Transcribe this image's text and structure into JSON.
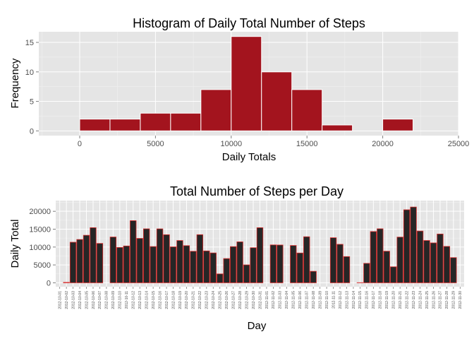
{
  "chart_data": [
    {
      "type": "bar",
      "title": "Histogram of Daily Total Number of Steps",
      "xlabel": "Daily Totals",
      "ylabel": "Frequency",
      "xlim": [
        -2700,
        25000
      ],
      "ylim": [
        -0.8,
        16.8
      ],
      "xticks": [
        "0",
        "5000",
        "10000",
        "15000",
        "20000",
        "25000"
      ],
      "yticks": [
        "0",
        "5",
        "10",
        "15"
      ],
      "bin_width": 2000,
      "bins": [
        {
          "start": 0,
          "end": 2000,
          "count": 2
        },
        {
          "start": 2000,
          "end": 4000,
          "count": 2
        },
        {
          "start": 4000,
          "end": 6000,
          "count": 3
        },
        {
          "start": 6000,
          "end": 8000,
          "count": 3
        },
        {
          "start": 8000,
          "end": 10000,
          "count": 7
        },
        {
          "start": 10000,
          "end": 12000,
          "count": 16
        },
        {
          "start": 12000,
          "end": 14000,
          "count": 10
        },
        {
          "start": 14000,
          "end": 16000,
          "count": 7
        },
        {
          "start": 16000,
          "end": 18000,
          "count": 1
        },
        {
          "start": 18000,
          "end": 20000,
          "count": 0
        },
        {
          "start": 20000,
          "end": 22000,
          "count": 2
        }
      ],
      "fill_color": "#a3141e",
      "border_color": "#ffffff",
      "panel_color": "#e5e5e5",
      "grid": true
    },
    {
      "type": "bar",
      "title": "Total Number of Steps per Day",
      "xlabel": "Day",
      "ylabel": "Daily Total",
      "ylim": [
        -1100,
        23000
      ],
      "yticks": [
        "0",
        "5000",
        "10000",
        "15000",
        "20000"
      ],
      "categories": [
        "2012-10-01",
        "2012-10-02",
        "2012-10-03",
        "2012-10-04",
        "2012-10-05",
        "2012-10-06",
        "2012-10-07",
        "2012-10-08",
        "2012-10-09",
        "2012-10-10",
        "2012-10-11",
        "2012-10-12",
        "2012-10-13",
        "2012-10-14",
        "2012-10-15",
        "2012-10-16",
        "2012-10-17",
        "2012-10-18",
        "2012-10-19",
        "2012-10-20",
        "2012-10-21",
        "2012-10-22",
        "2012-10-23",
        "2012-10-24",
        "2012-10-25",
        "2012-10-26",
        "2012-10-27",
        "2012-10-28",
        "2012-10-29",
        "2012-10-30",
        "2012-10-31",
        "2012-11-01",
        "2012-11-02",
        "2012-11-03",
        "2012-11-04",
        "2012-11-05",
        "2012-11-06",
        "2012-11-07",
        "2012-11-08",
        "2012-11-09",
        "2012-11-10",
        "2012-11-11",
        "2012-11-12",
        "2012-11-13",
        "2012-11-14",
        "2012-11-15",
        "2012-11-16",
        "2012-11-17",
        "2012-11-18",
        "2012-11-19",
        "2012-11-20",
        "2012-11-21",
        "2012-11-22",
        "2012-11-23",
        "2012-11-24",
        "2012-11-25",
        "2012-11-26",
        "2012-11-27",
        "2012-11-28",
        "2012-11-29",
        "2012-11-30"
      ],
      "values": [
        0,
        126,
        11352,
        12116,
        13294,
        15420,
        11015,
        0,
        12811,
        9900,
        10304,
        17382,
        12426,
        15098,
        10139,
        15084,
        13452,
        10056,
        11829,
        10395,
        8821,
        13460,
        8918,
        8355,
        2492,
        6778,
        10119,
        11458,
        5018,
        9819,
        15414,
        0,
        10600,
        10571,
        0,
        10439,
        8334,
        12883,
        3219,
        0,
        0,
        12608,
        10765,
        7336,
        0,
        41,
        5441,
        14339,
        15110,
        8841,
        4472,
        12787,
        20427,
        21194,
        14478,
        11834,
        11162,
        13646,
        10183,
        7047,
        0
      ],
      "fill_color": "#262626",
      "border_color": "#d62a2a",
      "panel_color": "#e5e5e5",
      "grid": true
    }
  ]
}
